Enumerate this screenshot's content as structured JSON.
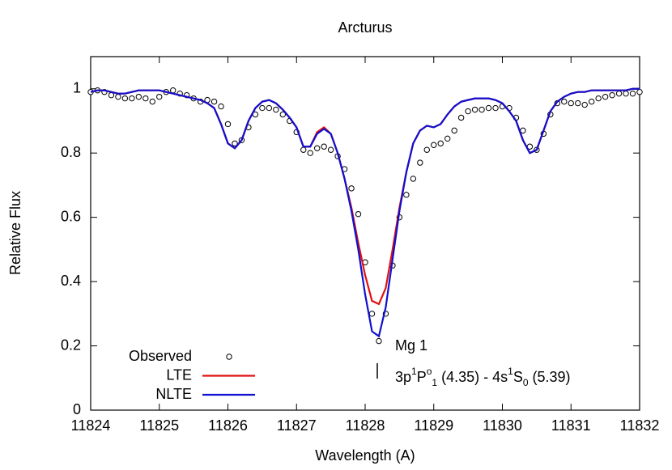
{
  "chart_data": {
    "type": "line",
    "title": "Arcturus",
    "x_label": "Wavelength (A)",
    "y_label": "Relative Flux",
    "xlim": [
      11824,
      11832
    ],
    "ylim": [
      0,
      1.1
    ],
    "xticks": [
      11824,
      11825,
      11826,
      11827,
      11828,
      11829,
      11830,
      11831,
      11832
    ],
    "yticks": [
      0,
      0.2,
      0.4,
      0.6,
      0.8,
      1
    ],
    "legend": "bottom-left",
    "x": [
      11824.0,
      11824.1,
      11824.2,
      11824.3,
      11824.4,
      11824.5,
      11824.6,
      11824.7,
      11824.8,
      11824.9,
      11825.0,
      11825.1,
      11825.2,
      11825.3,
      11825.4,
      11825.5,
      11825.6,
      11825.7,
      11825.8,
      11825.9,
      11826.0,
      11826.1,
      11826.2,
      11826.3,
      11826.4,
      11826.5,
      11826.6,
      11826.7,
      11826.8,
      11826.9,
      11827.0,
      11827.1,
      11827.2,
      11827.3,
      11827.4,
      11827.5,
      11827.6,
      11827.7,
      11827.8,
      11827.9,
      11828.0,
      11828.1,
      11828.2,
      11828.3,
      11828.4,
      11828.5,
      11828.6,
      11828.7,
      11828.8,
      11828.9,
      11829.0,
      11829.1,
      11829.2,
      11829.3,
      11829.4,
      11829.5,
      11829.6,
      11829.7,
      11829.8,
      11829.9,
      11830.0,
      11830.1,
      11830.2,
      11830.3,
      11830.4,
      11830.5,
      11830.6,
      11830.7,
      11830.8,
      11830.9,
      11831.0,
      11831.1,
      11831.2,
      11831.3,
      11831.4,
      11831.5,
      11831.6,
      11831.7,
      11831.8,
      11831.9,
      11832.0
    ],
    "series": [
      {
        "name": "Observed",
        "color": "#000000",
        "style": "points",
        "values": [
          0.99,
          0.995,
          0.99,
          0.98,
          0.975,
          0.97,
          0.97,
          0.975,
          0.97,
          0.96,
          0.975,
          0.99,
          0.995,
          0.985,
          0.98,
          0.97,
          0.96,
          0.965,
          0.96,
          0.945,
          0.89,
          0.83,
          0.84,
          0.88,
          0.92,
          0.94,
          0.94,
          0.935,
          0.92,
          0.9,
          0.865,
          0.81,
          0.8,
          0.815,
          0.82,
          0.81,
          0.79,
          0.75,
          0.69,
          0.61,
          0.46,
          0.3,
          0.215,
          0.3,
          0.45,
          0.6,
          0.67,
          0.72,
          0.77,
          0.81,
          0.825,
          0.83,
          0.845,
          0.87,
          0.91,
          0.93,
          0.935,
          0.935,
          0.94,
          0.94,
          0.945,
          0.94,
          0.91,
          0.87,
          0.82,
          0.81,
          0.86,
          0.92,
          0.955,
          0.96,
          0.955,
          0.955,
          0.95,
          0.96,
          0.97,
          0.975,
          0.98,
          0.985,
          0.985,
          0.985,
          0.99
        ]
      },
      {
        "name": "LTE",
        "color": "#e01010",
        "style": "line",
        "values": [
          0.99,
          0.995,
          0.995,
          0.99,
          0.985,
          0.985,
          0.99,
          0.995,
          0.995,
          0.995,
          0.995,
          0.99,
          0.985,
          0.98,
          0.975,
          0.97,
          0.965,
          0.955,
          0.94,
          0.89,
          0.83,
          0.815,
          0.84,
          0.9,
          0.94,
          0.96,
          0.965,
          0.955,
          0.935,
          0.91,
          0.88,
          0.82,
          0.82,
          0.865,
          0.88,
          0.86,
          0.8,
          0.72,
          0.63,
          0.52,
          0.42,
          0.34,
          0.33,
          0.38,
          0.5,
          0.63,
          0.74,
          0.83,
          0.87,
          0.885,
          0.88,
          0.89,
          0.92,
          0.945,
          0.96,
          0.965,
          0.97,
          0.97,
          0.97,
          0.965,
          0.955,
          0.93,
          0.9,
          0.84,
          0.8,
          0.81,
          0.87,
          0.93,
          0.96,
          0.975,
          0.985,
          0.99,
          0.99,
          0.995,
          0.995,
          0.995,
          0.995,
          0.995,
          0.995,
          1.0,
          1.0
        ]
      },
      {
        "name": "NLTE",
        "color": "#1010d0",
        "style": "line",
        "values": [
          0.99,
          0.995,
          0.995,
          0.99,
          0.985,
          0.985,
          0.99,
          0.995,
          0.995,
          0.995,
          0.995,
          0.99,
          0.985,
          0.98,
          0.975,
          0.97,
          0.965,
          0.955,
          0.94,
          0.89,
          0.83,
          0.815,
          0.84,
          0.9,
          0.94,
          0.96,
          0.965,
          0.955,
          0.935,
          0.91,
          0.88,
          0.82,
          0.82,
          0.86,
          0.875,
          0.86,
          0.8,
          0.72,
          0.62,
          0.5,
          0.36,
          0.245,
          0.23,
          0.32,
          0.47,
          0.62,
          0.74,
          0.83,
          0.87,
          0.885,
          0.88,
          0.89,
          0.92,
          0.945,
          0.96,
          0.965,
          0.97,
          0.97,
          0.97,
          0.965,
          0.955,
          0.93,
          0.9,
          0.84,
          0.8,
          0.81,
          0.87,
          0.93,
          0.96,
          0.975,
          0.985,
          0.99,
          0.99,
          0.995,
          0.995,
          0.995,
          0.995,
          0.995,
          0.995,
          1.0,
          1.0
        ]
      }
    ],
    "annotation_line1": "Mg 1",
    "annotation_line2": [
      {
        "text": "3p"
      },
      {
        "text": "1",
        "shift": "super"
      },
      {
        "text": "P"
      },
      {
        "text": "o",
        "shift": "super"
      },
      {
        "text": "1",
        "shift": "sub"
      },
      {
        "text": " (4.35) - 4s"
      },
      {
        "text": "1",
        "shift": "super"
      },
      {
        "text": "S"
      },
      {
        "text": "0",
        "shift": "sub"
      },
      {
        "text": " (5.39)"
      }
    ]
  }
}
